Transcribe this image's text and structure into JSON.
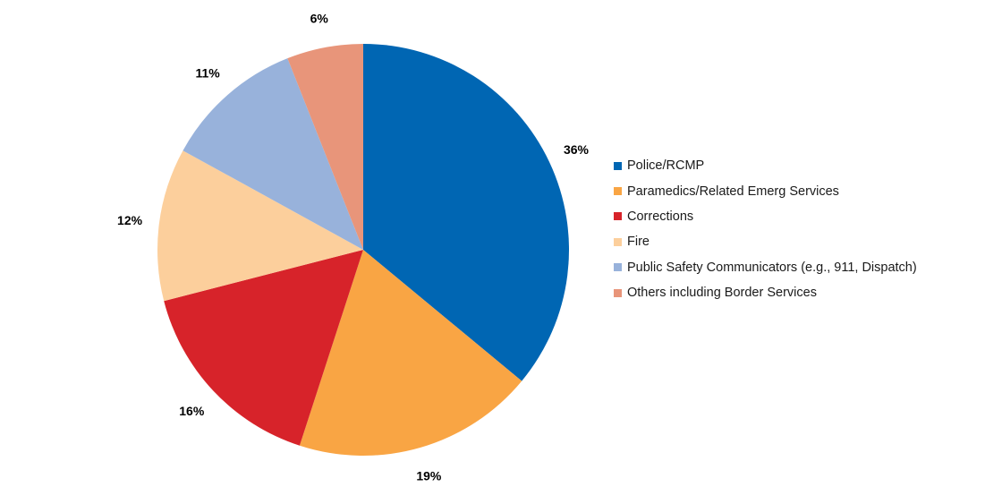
{
  "chart_data": {
    "type": "pie",
    "title": "",
    "slices": [
      {
        "name": "Police/RCMP",
        "value": 36,
        "label": "36%",
        "color": "#0066B3"
      },
      {
        "name": "Paramedics/Related Emerg Services",
        "value": 19,
        "label": "19%",
        "color": "#F9A544"
      },
      {
        "name": "Corrections",
        "value": 16,
        "label": "16%",
        "color": "#D7232A"
      },
      {
        "name": "Fire",
        "value": 12,
        "label": "12%",
        "color": "#FCCF9C"
      },
      {
        "name": "Public Safety Communicators (e.g., 911, Dispatch)",
        "value": 11,
        "label": "11%",
        "color": "#98B2DB"
      },
      {
        "name": "Others including Border Services",
        "value": 6,
        "label": "6%",
        "color": "#E8957A"
      }
    ],
    "start": "12 o'clock",
    "direction": "clockwise",
    "legend_position": "right",
    "data_labels": "outside"
  }
}
